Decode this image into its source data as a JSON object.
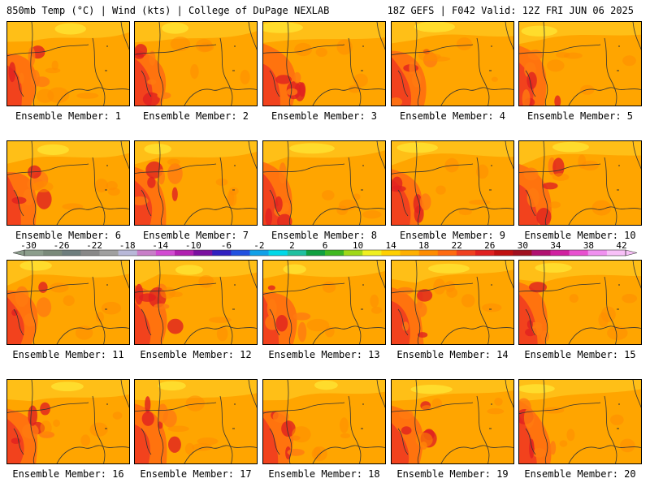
{
  "header": {
    "left": "850mb Temp (°C) | Wind (kts) | College of DuPage NEXLAB",
    "right": "18Z GEFS | F042 Valid: 12Z FRI JUN 06 2025"
  },
  "panel_labels": [
    "Ensemble Member: 1",
    "Ensemble Member: 2",
    "Ensemble Member: 3",
    "Ensemble Member: 4",
    "Ensemble Member: 5",
    "Ensemble Member: 6",
    "Ensemble Member: 7",
    "Ensemble Member: 8",
    "Ensemble Member: 9",
    "Ensemble Member: 10",
    "Ensemble Member: 11",
    "Ensemble Member: 12",
    "Ensemble Member: 13",
    "Ensemble Member: 14",
    "Ensemble Member: 15",
    "Ensemble Member: 16",
    "Ensemble Member: 17",
    "Ensemble Member: 18",
    "Ensemble Member: 19",
    "Ensemble Member: 20"
  ],
  "colorbar": {
    "tick_labels": [
      "-30",
      "-26",
      "-22",
      "-18",
      "-14",
      "-10",
      "-6",
      "-2",
      "2",
      "6",
      "10",
      "14",
      "18",
      "22",
      "26",
      "30",
      "34",
      "38",
      "42"
    ],
    "colors": [
      "#8c9e8c",
      "#7a8a7a",
      "#6e7e7e",
      "#888888",
      "#a0a0a0",
      "#b8b8d8",
      "#c87ec8",
      "#d24ad2",
      "#b020b0",
      "#7a10a0",
      "#3020c0",
      "#2050e0",
      "#10a0e8",
      "#00d8e8",
      "#20c0a0",
      "#10a040",
      "#40b820",
      "#a0d818",
      "#f0f020",
      "#ffd000",
      "#ffb000",
      "#ff8c00",
      "#ff6a10",
      "#f04020",
      "#e02020",
      "#c01010",
      "#a01020",
      "#b01070",
      "#d020a0",
      "#e850d0",
      "#f090f0",
      "#f8c0f8"
    ]
  }
}
